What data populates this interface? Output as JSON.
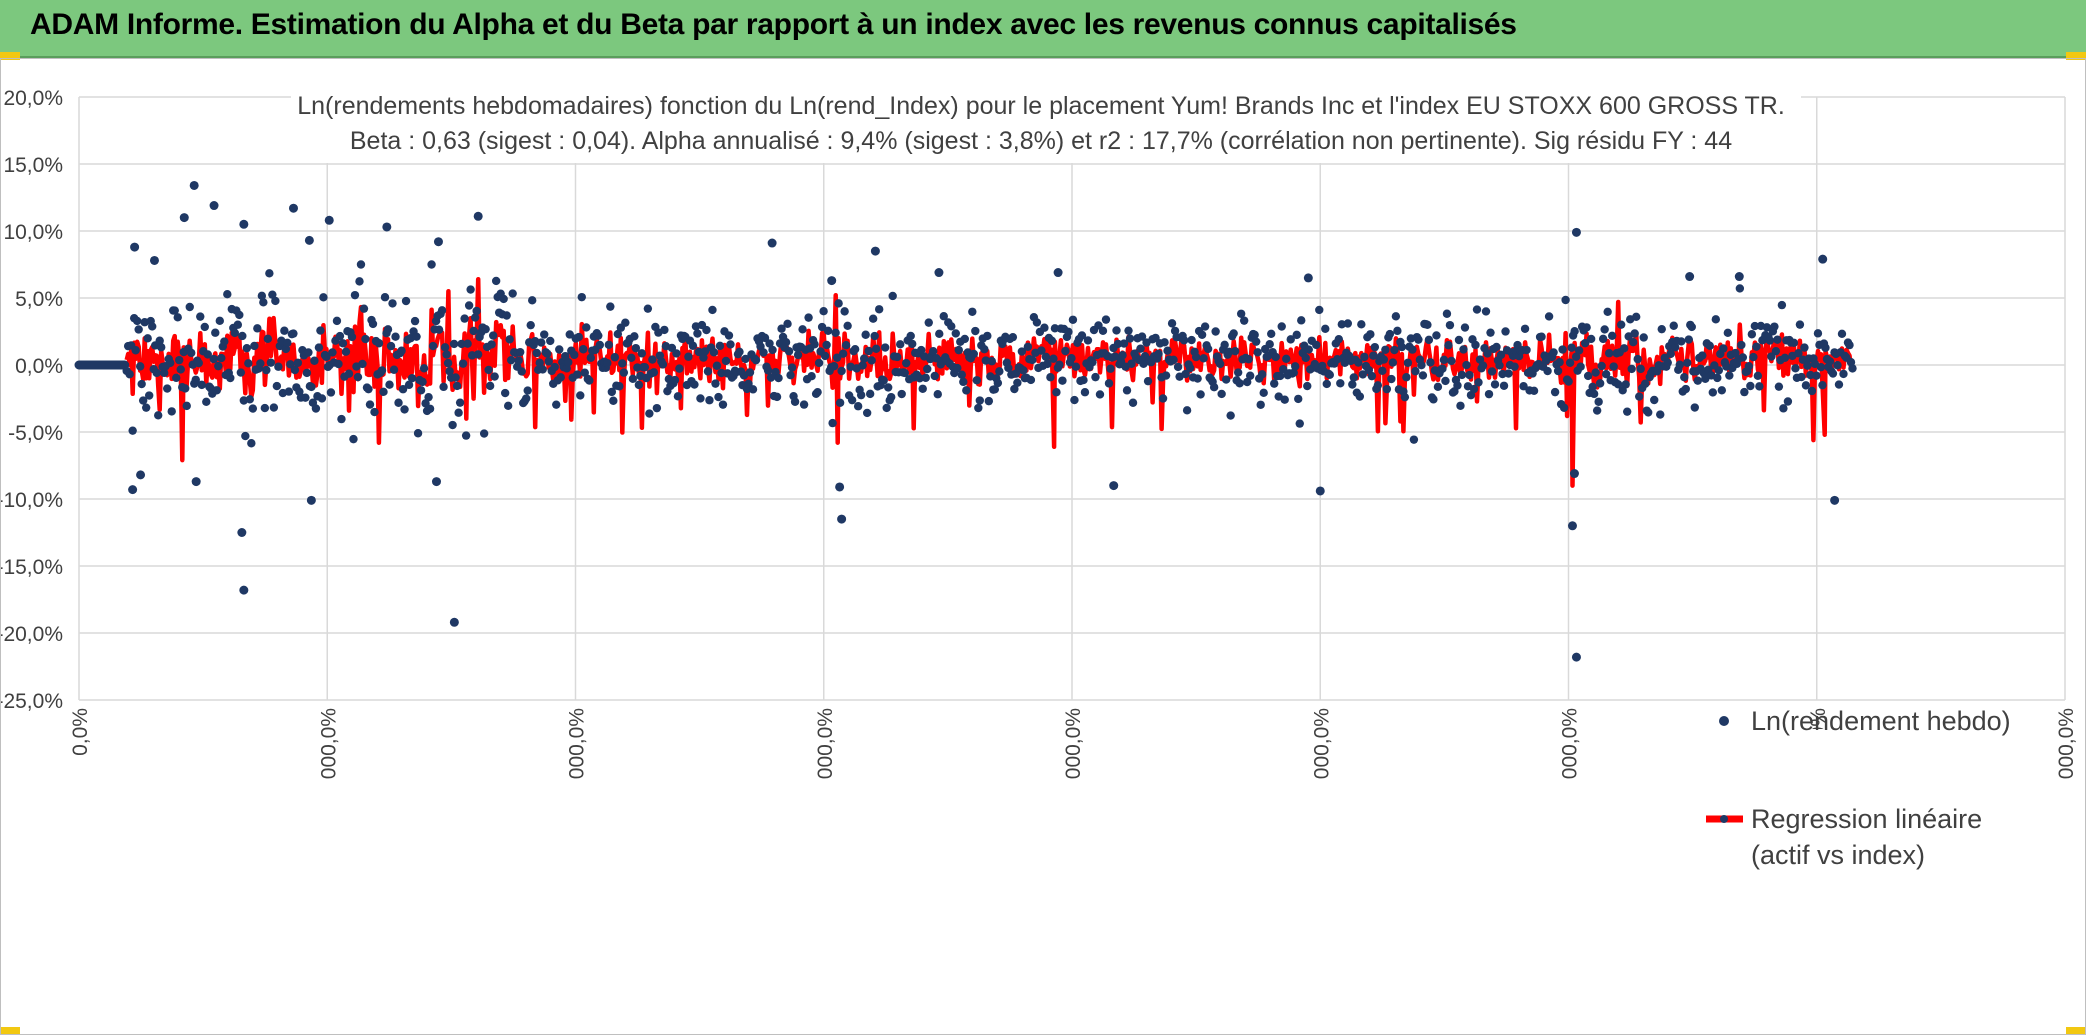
{
  "header": {
    "title": "ADAM Informe. Estimation du Alpha et du Beta par rapport à un index avec les revenus connus capitalisés"
  },
  "colors": {
    "header_bg": "#7cc87e",
    "dots": "#1f3864",
    "regression": "#ff0000",
    "grid": "#d9d9d9",
    "accent": "#f2c811"
  },
  "chart_data": {
    "type": "scatter",
    "title_line1": "Ln(rendements hebdomadaires) fonction du Ln(rend_Index) pour le placement Yum! Brands Inc et l'index EU STOXX 600 GROSS TR.",
    "title_line2": "Beta : 0,63 (sigest : 0,04). Alpha annualisé : 9,4% (sigest : 3,8%) et r2 : 17,7% (corrélation non pertinente). Sig résidu FY : 44",
    "ylim": [
      -25,
      20
    ],
    "y_ticks": [
      "20,0%",
      "15,0%",
      "10,0%",
      "5,0%",
      "0,0%",
      "-5,0%",
      "-10,0%",
      "-15,0%",
      "-20,0%",
      "-25,0%"
    ],
    "y_tick_values": [
      20,
      15,
      10,
      5,
      0,
      -5,
      -10,
      -15,
      -20,
      -25
    ],
    "x_ticks": [
      "0,0%",
      "000,0%",
      "000,0%",
      "000,0%",
      "000,0%",
      "000,0%",
      "000,0%",
      "000,0%",
      "000,0%"
    ],
    "xlim": [
      0,
      100
    ],
    "x_tick_values": [
      0,
      12.5,
      25,
      37.5,
      50,
      62.5,
      75,
      87.5,
      100
    ],
    "series": [
      {
        "name": "Ln(rendement hebdo)",
        "kind": "dots",
        "notable_points": [
          {
            "x": 5.8,
            "y": 13.4
          },
          {
            "x": 6.8,
            "y": 11.9
          },
          {
            "x": 5.3,
            "y": 11.0
          },
          {
            "x": 8.3,
            "y": 10.5
          },
          {
            "x": 10.8,
            "y": 11.7
          },
          {
            "x": 12.6,
            "y": 10.8
          },
          {
            "x": 15.5,
            "y": 10.3
          },
          {
            "x": 20.1,
            "y": 11.1
          },
          {
            "x": 18.1,
            "y": 9.2
          },
          {
            "x": 2.8,
            "y": 8.8
          },
          {
            "x": 11.6,
            "y": 9.3
          },
          {
            "x": 3.8,
            "y": 7.8
          },
          {
            "x": 34.9,
            "y": 9.1
          },
          {
            "x": 40.1,
            "y": 8.5
          },
          {
            "x": 75.4,
            "y": 9.9
          },
          {
            "x": 87.8,
            "y": 7.9
          },
          {
            "x": 2.7,
            "y": -9.3
          },
          {
            "x": 3.1,
            "y": -8.2
          },
          {
            "x": 5.9,
            "y": -8.7
          },
          {
            "x": 11.7,
            "y": -10.1
          },
          {
            "x": 18.0,
            "y": -8.7
          },
          {
            "x": 8.2,
            "y": -12.5
          },
          {
            "x": 8.3,
            "y": -16.8
          },
          {
            "x": 18.9,
            "y": -19.2
          },
          {
            "x": 38.3,
            "y": -9.1
          },
          {
            "x": 38.4,
            "y": -11.5
          },
          {
            "x": 52.1,
            "y": -9.0
          },
          {
            "x": 62.5,
            "y": -9.4
          },
          {
            "x": 75.3,
            "y": -8.1
          },
          {
            "x": 75.2,
            "y": -12.0
          },
          {
            "x": 75.4,
            "y": -21.8
          },
          {
            "x": 88.4,
            "y": -10.1
          },
          {
            "x": 49.3,
            "y": 6.9
          },
          {
            "x": 61.9,
            "y": 6.5
          },
          {
            "x": 81.1,
            "y": 6.6
          },
          {
            "x": 83.6,
            "y": 6.6
          },
          {
            "x": 43.3,
            "y": 6.9
          },
          {
            "x": 37.9,
            "y": 6.3
          }
        ],
        "flat_segment": {
          "x_from": 0.0,
          "x_to": 2.3,
          "y": 0.0
        }
      },
      {
        "name": "Regression linéaire",
        "kind": "line",
        "note": "predicted weekly returns, approx. between -9% and +6%"
      }
    ],
    "legend": [
      {
        "label": "Ln(rendement hebdo)"
      },
      {
        "label_line1": "Regression linéaire",
        "label_line2": "(actif vs index)"
      }
    ]
  }
}
